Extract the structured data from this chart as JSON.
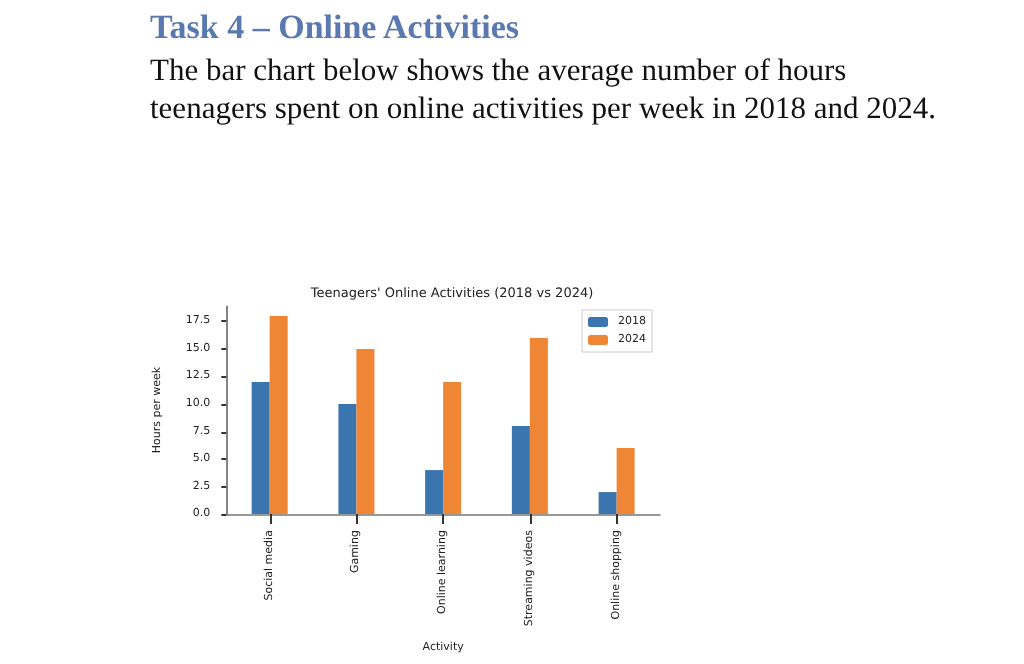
{
  "chart_data": {
    "type": "bar",
    "title": "Teenagers' Online Activities (2018 vs 2024)",
    "annotations": [
      "Task 4 – Online Activities",
      "The bar chart below shows the average number of hours teenagers spent on online activities per week in 2018 and 2024."
    ],
    "xlabel": "Activity",
    "ylabel": "Hours per week",
    "categories": [
      "Social media",
      "Gaming",
      "Online learning",
      "Streaming videos",
      "Online shopping"
    ],
    "series": [
      {
        "name": "2018",
        "color": "#3b75af",
        "values": [
          12,
          10,
          4,
          8,
          2
        ]
      },
      {
        "name": "2024",
        "color": "#ef8636",
        "values": [
          18,
          15,
          12,
          16,
          6
        ]
      }
    ],
    "ylim": [
      0,
      18.9
    ],
    "yticks": [
      {
        "value": 0,
        "label": "0.0"
      },
      2.5,
      {
        "value": 5,
        "label": "5.0"
      },
      7.5,
      {
        "value": 10,
        "label": "10.0"
      },
      12.5,
      {
        "value": 15,
        "label": "15.0"
      },
      17.5
    ],
    "legend": "top right",
    "grid": false
  }
}
